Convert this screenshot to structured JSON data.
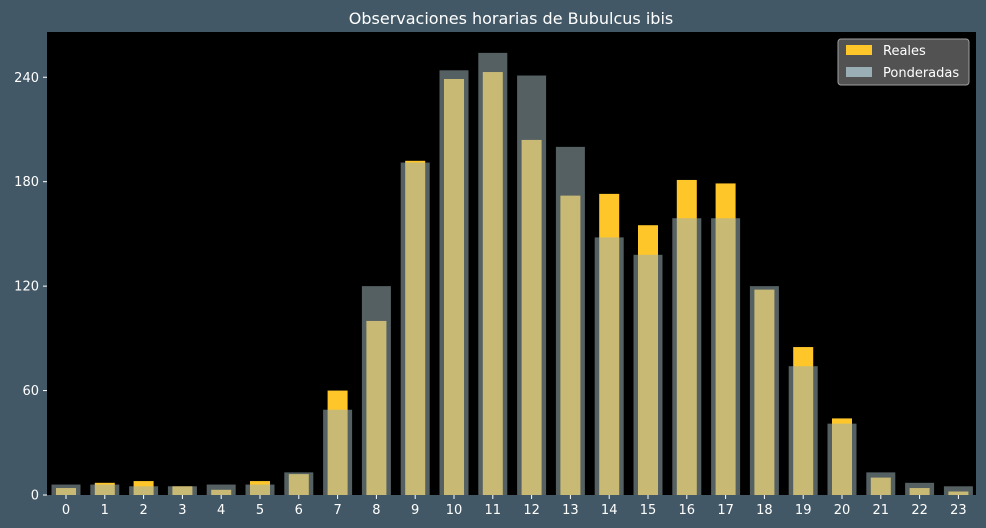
{
  "chart_data": {
    "type": "bar",
    "title": "Observaciones horarias de Bubulcus ibis",
    "xlabel": "",
    "ylabel": "",
    "categories": [
      "0",
      "1",
      "2",
      "3",
      "4",
      "5",
      "6",
      "7",
      "8",
      "9",
      "10",
      "11",
      "12",
      "13",
      "14",
      "15",
      "16",
      "17",
      "18",
      "19",
      "20",
      "21",
      "22",
      "23"
    ],
    "ylim": [
      0,
      266
    ],
    "yticks": [
      0,
      60,
      120,
      180,
      240
    ],
    "grid": false,
    "legend_position": "top-right",
    "series": [
      {
        "name": "Reales",
        "color": "#ffc629",
        "values": [
          4,
          7,
          8,
          5,
          3,
          8,
          12,
          60,
          100,
          192,
          239,
          243,
          204,
          172,
          173,
          155,
          181,
          179,
          118,
          85,
          44,
          10,
          4,
          2
        ]
      },
      {
        "name": "Ponderadas",
        "color": "#9aaeb5",
        "values": [
          6,
          6,
          5,
          5,
          6,
          6,
          13,
          49,
          120,
          191,
          244,
          254,
          241,
          200,
          148,
          138,
          159,
          159,
          120,
          74,
          41,
          13,
          7,
          5
        ]
      }
    ]
  },
  "colors": {
    "background": "#425866",
    "plot_background": "#000000",
    "text": "#ffffff"
  }
}
